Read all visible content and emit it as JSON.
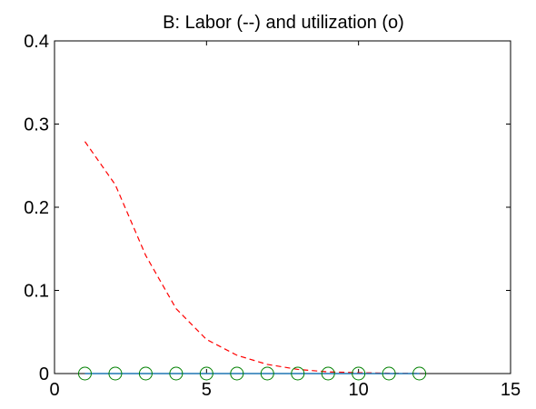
{
  "chart_data": {
    "type": "line",
    "title": "B: Labor (--) and utilization (o)",
    "xlabel": "",
    "ylabel": "",
    "xlim": [
      0,
      15
    ],
    "ylim": [
      0,
      0.4
    ],
    "xticks": [
      0,
      5,
      10,
      15
    ],
    "yticks": [
      0,
      0.1,
      0.2,
      0.3,
      0.4
    ],
    "xtick_labels": [
      "0",
      "5",
      "10",
      "15"
    ],
    "ytick_labels": [
      "0",
      "0.1",
      "0.2",
      "0.3",
      "0.4"
    ],
    "grid": false,
    "series": [
      {
        "style": "dashed-line",
        "color": "#ff0000",
        "x": [
          1,
          2,
          3,
          4,
          5,
          6,
          7,
          8,
          9,
          10,
          11,
          12
        ],
        "y": [
          0.279,
          0.227,
          0.142,
          0.078,
          0.041,
          0.022,
          0.011,
          0.005,
          0.002,
          0.001,
          0.0005,
          0.0002
        ]
      },
      {
        "style": "solid-line",
        "color": "#1f77b4",
        "x": [
          1,
          2,
          3,
          4,
          5,
          6,
          7,
          8,
          9,
          10,
          11,
          12
        ],
        "y": [
          0,
          0,
          0,
          0,
          0,
          0,
          0,
          0,
          0,
          0,
          0,
          0
        ]
      },
      {
        "style": "circle-markers",
        "color": "#008000",
        "x": [
          1,
          2,
          3,
          4,
          5,
          6,
          7,
          8,
          9,
          10,
          11,
          12
        ],
        "y": [
          0,
          0,
          0,
          0,
          0,
          0,
          0,
          0,
          0,
          0,
          0,
          0
        ]
      }
    ]
  }
}
